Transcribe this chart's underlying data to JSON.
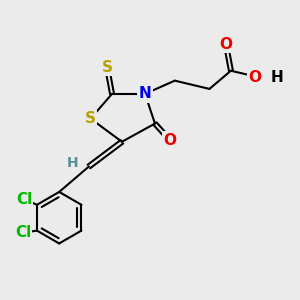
{
  "background_color": "#ebebeb",
  "atom_colors": {
    "S": "#b8a000",
    "N": "#0000ee",
    "O": "#ee0000",
    "Cl": "#00bb00",
    "C": "#000000",
    "H": "#5a9090"
  },
  "bond_color": "#000000",
  "bond_width": 1.5,
  "font_size_atom": 11
}
